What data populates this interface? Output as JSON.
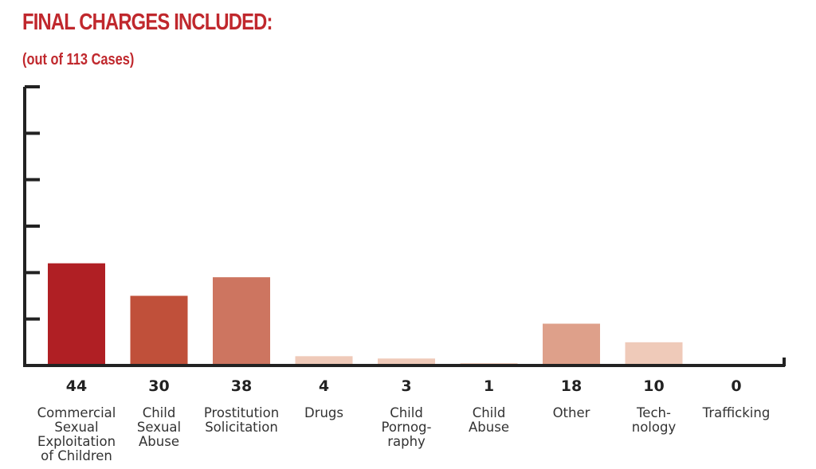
{
  "header": {
    "title": "FINAL CHARGES INCLUDED:",
    "subtitle": "(out of 113 Cases)"
  },
  "chart_data": {
    "type": "bar",
    "title": "FINAL CHARGES INCLUDED:",
    "subtitle": "(out of 113 Cases)",
    "categories": [
      "Commercial Sexual Exploitation of Children",
      "Child Sexual Abuse",
      "Prostitution Solicitation",
      "Drugs",
      "Child Pornography",
      "Child Abuse",
      "Other",
      "Technology",
      "Trafficking"
    ],
    "category_label_lines": [
      [
        "Commercial",
        "Sexual",
        "Exploitation",
        "of Children"
      ],
      [
        "Child",
        "Sexual",
        "Abuse"
      ],
      [
        "Prostitution",
        "Solicitation"
      ],
      [
        "Drugs"
      ],
      [
        "Child",
        "Pornog-",
        "raphy"
      ],
      [
        "Child",
        "Abuse"
      ],
      [
        "Other"
      ],
      [
        "Tech-",
        "nology"
      ],
      [
        "Trafficking"
      ]
    ],
    "values": [
      44,
      30,
      38,
      4,
      3,
      1,
      18,
      10,
      0
    ],
    "value_labels": [
      "44",
      "30",
      "38",
      "4",
      "3",
      "1",
      "18",
      "10",
      "0"
    ],
    "bar_colors": [
      "#b01f24",
      "#c0503a",
      "#cd7560",
      "#efcab9",
      "#efcab9",
      "#efcab9",
      "#dea08a",
      "#efcab9",
      "#efcab9"
    ],
    "ylim": [
      0,
      120
    ],
    "y_ticks": [
      0,
      20,
      40,
      60,
      80,
      100,
      120
    ],
    "y_tick_labels_shown": false,
    "grid": false,
    "legend": "none",
    "axis_color": "#222222"
  }
}
